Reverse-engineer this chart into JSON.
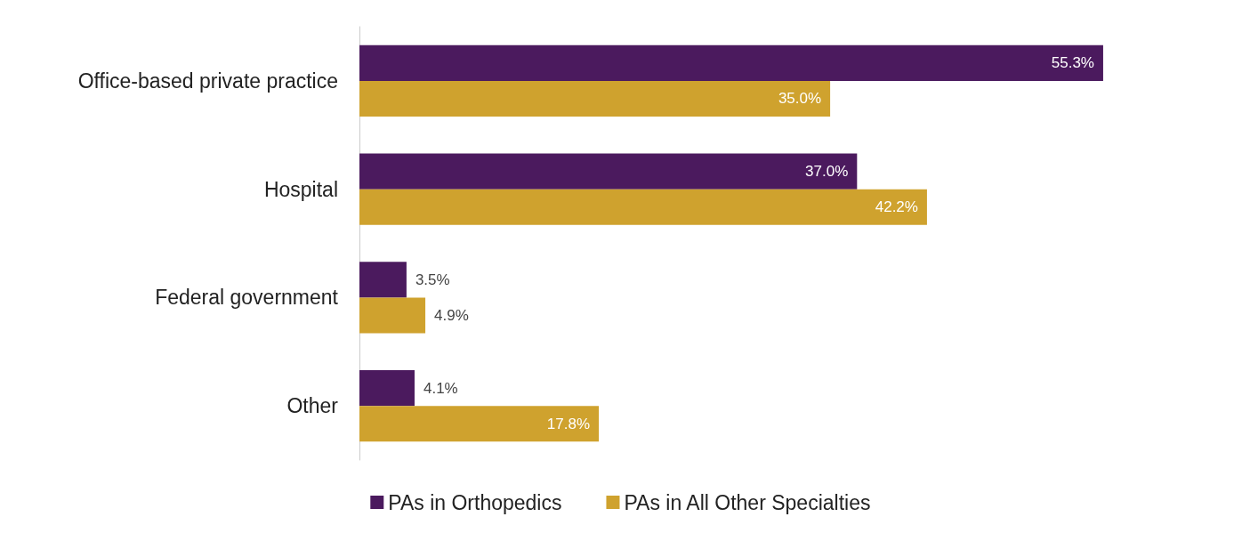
{
  "chart_data": {
    "type": "bar",
    "orientation": "horizontal",
    "categories": [
      "Office-based private practice",
      "Hospital",
      "Federal government",
      "Other"
    ],
    "series": [
      {
        "name": "PAs in Orthopedics",
        "color": "#4b1a5e",
        "values": [
          55.3,
          37.0,
          3.5,
          4.1
        ],
        "value_labels": [
          "55.3%",
          "37.0%",
          "3.5%",
          "4.1%"
        ]
      },
      {
        "name": "PAs in All Other Specialties",
        "color": "#cfa22e",
        "values": [
          35.0,
          42.2,
          4.9,
          17.8
        ],
        "value_labels": [
          "35.0%",
          "42.2%",
          "4.9%",
          "17.8%"
        ]
      }
    ],
    "legend": "bottom"
  }
}
